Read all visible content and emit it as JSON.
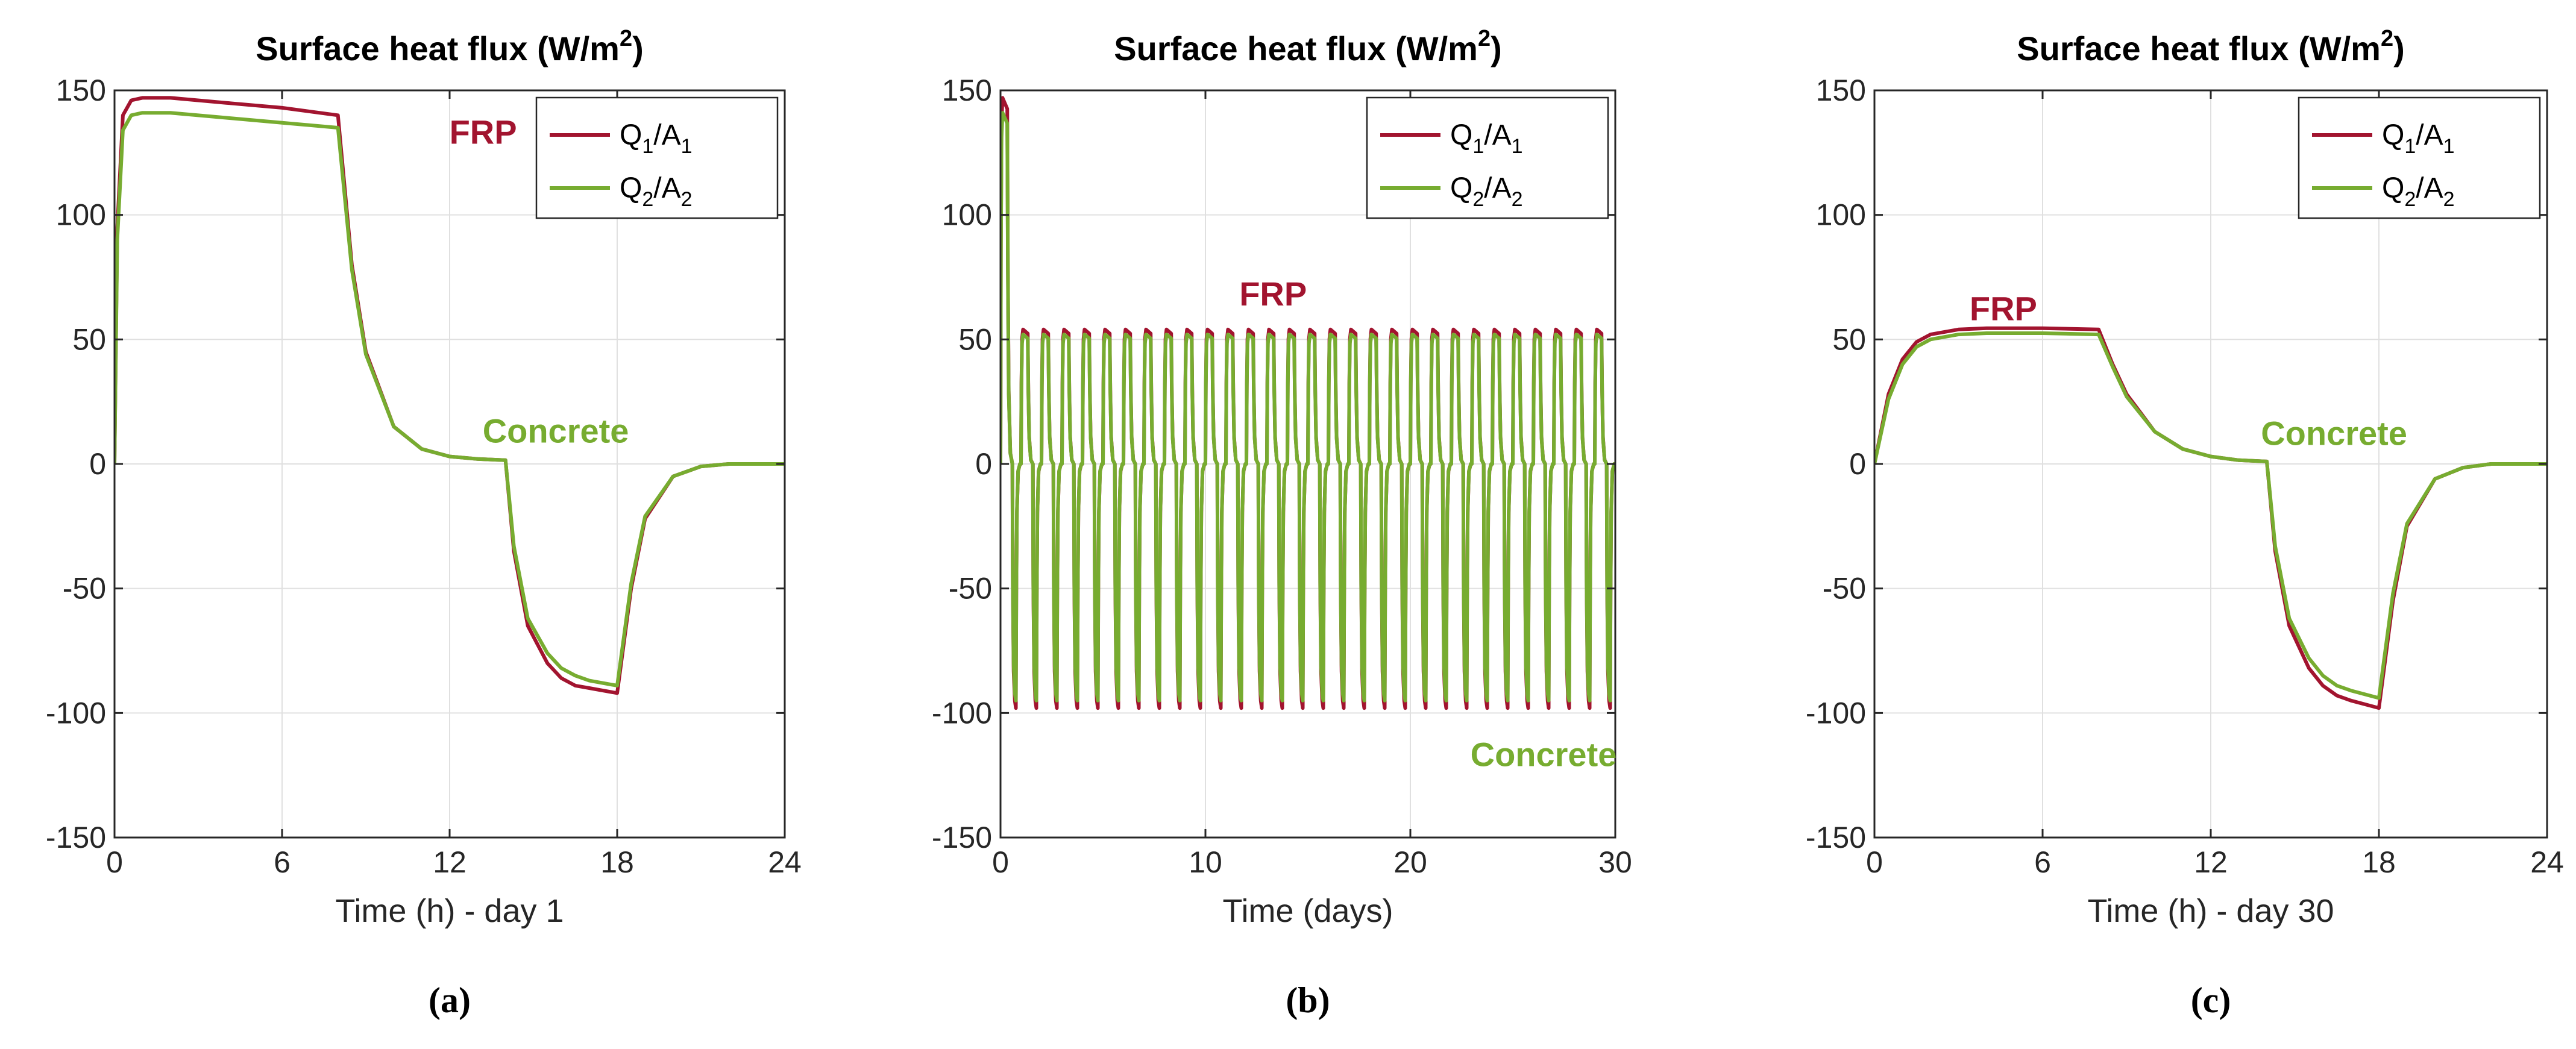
{
  "colors": {
    "q1": "#A2142F",
    "q2": "#77AC30",
    "frp_text": "#A2142F",
    "concrete_text": "#77AC30"
  },
  "chart_data": [
    {
      "panel": "(a)",
      "type": "line",
      "title": "Surface heat flux (W/m2)",
      "title_base": "Surface heat flux (W/m",
      "title_sup": "2",
      "title_end": ")",
      "xlabel": "Time (h) - day 1",
      "ylabel": "",
      "xlim": [
        0,
        24
      ],
      "ylim": [
        -150,
        150
      ],
      "xticks": [
        0,
        6,
        12,
        18,
        24
      ],
      "yticks": [
        -150,
        -100,
        -50,
        0,
        50,
        100,
        150
      ],
      "grid": true,
      "legend_position": "top-right",
      "legend": [
        {
          "base": "Q",
          "sub1": "1",
          "mid": "/A",
          "sub2": "1"
        },
        {
          "base": "Q",
          "sub1": "2",
          "mid": "/A",
          "sub2": "2"
        }
      ],
      "annotations": [
        {
          "text": "FRP",
          "x": 13.2,
          "y": 133,
          "color": "q1"
        },
        {
          "text": "Concrete",
          "x": 15.8,
          "y": 13,
          "color": "q2"
        }
      ],
      "series": [
        {
          "name": "Q1/A1",
          "color": "q1",
          "x": [
            0,
            0.1,
            0.3,
            0.6,
            1,
            2,
            4,
            6,
            8,
            8.5,
            9,
            10,
            11,
            12,
            13,
            14,
            14.3,
            14.8,
            15.5,
            16,
            16.5,
            17,
            18,
            18.5,
            19,
            20,
            21,
            22,
            24
          ],
          "y": [
            0,
            95,
            140,
            146,
            147,
            147,
            145,
            143,
            140,
            80,
            45,
            15,
            6,
            3,
            2,
            1.5,
            -35,
            -65,
            -80,
            -86,
            -89,
            -90,
            -92,
            -50,
            -22,
            -5,
            -1,
            0,
            0
          ]
        },
        {
          "name": "Q2/A2",
          "color": "q2",
          "x": [
            0,
            0.1,
            0.3,
            0.6,
            1,
            2,
            4,
            6,
            8,
            8.5,
            9,
            10,
            11,
            12,
            13,
            14,
            14.3,
            14.8,
            15.5,
            16,
            16.5,
            17,
            18,
            18.5,
            19,
            20,
            21,
            22,
            24
          ],
          "y": [
            0,
            90,
            134,
            140,
            141,
            141,
            139,
            137,
            135,
            78,
            44,
            15,
            6,
            3,
            2,
            1.5,
            -33,
            -62,
            -76,
            -82,
            -85,
            -87,
            -89,
            -48,
            -21,
            -5,
            -1,
            0,
            0
          ]
        }
      ]
    },
    {
      "panel": "(b)",
      "type": "line",
      "title": "Surface heat flux (W/m2)",
      "title_base": "Surface heat flux (W/m",
      "title_sup": "2",
      "title_end": ")",
      "xlabel": "Time (days)",
      "ylabel": "",
      "xlim": [
        0,
        30
      ],
      "ylim": [
        -150,
        150
      ],
      "xticks": [
        0,
        10,
        20,
        30
      ],
      "yticks": [
        -150,
        -100,
        -50,
        0,
        50,
        100,
        150
      ],
      "grid": true,
      "legend_position": "top-right",
      "legend": [
        {
          "base": "Q",
          "sub1": "1",
          "mid": "/A",
          "sub2": "1"
        },
        {
          "base": "Q",
          "sub1": "2",
          "mid": "/A",
          "sub2": "2"
        }
      ],
      "annotations": [
        {
          "text": "FRP",
          "x": 13.3,
          "y": 68,
          "color": "q1"
        },
        {
          "text": "Concrete",
          "x": 26.5,
          "y": -117,
          "color": "q2"
        }
      ],
      "cycle_days": 30,
      "first_day_peak": {
        "q1": 147,
        "q2": 141
      },
      "series": [
        {
          "name": "Q1/A1",
          "color": "q1",
          "peak": 54,
          "trough": -98
        },
        {
          "name": "Q2/A2",
          "color": "q2",
          "peak": 52,
          "trough": -95
        }
      ]
    },
    {
      "panel": "(c)",
      "type": "line",
      "title": "Surface heat flux (W/m2)",
      "title_base": "Surface heat flux (W/m",
      "title_sup": "2",
      "title_end": ")",
      "xlabel": "Time (h) - day 30",
      "ylabel": "",
      "xlim": [
        0,
        24
      ],
      "ylim": [
        -150,
        150
      ],
      "xticks": [
        0,
        6,
        12,
        18,
        24
      ],
      "yticks": [
        -150,
        -100,
        -50,
        0,
        50,
        100,
        150
      ],
      "grid": true,
      "legend_position": "top-right",
      "legend": [
        {
          "base": "Q",
          "sub1": "1",
          "mid": "/A",
          "sub2": "1"
        },
        {
          "base": "Q",
          "sub1": "2",
          "mid": "/A",
          "sub2": "2"
        }
      ],
      "annotations": [
        {
          "text": "FRP",
          "x": 4.6,
          "y": 62,
          "color": "q1"
        },
        {
          "text": "Concrete",
          "x": 16.4,
          "y": 12,
          "color": "q2"
        }
      ],
      "series": [
        {
          "name": "Q1/A1",
          "color": "q1",
          "x": [
            0,
            0.5,
            1,
            1.5,
            2,
            3,
            4,
            6,
            8,
            8.5,
            9,
            10,
            11,
            12,
            13,
            14,
            14.3,
            14.8,
            15.5,
            16,
            16.5,
            17,
            18,
            18.5,
            19,
            20,
            21,
            22,
            24
          ],
          "y": [
            0,
            28,
            42,
            49,
            52,
            54,
            54.5,
            54.5,
            54,
            40,
            28,
            13,
            6,
            3,
            1.5,
            1,
            -35,
            -65,
            -82,
            -89,
            -93,
            -95,
            -98,
            -55,
            -25,
            -6,
            -1.5,
            0,
            0
          ]
        },
        {
          "name": "Q2/A2",
          "color": "q2",
          "x": [
            0,
            0.5,
            1,
            1.5,
            2,
            3,
            4,
            6,
            8,
            8.5,
            9,
            10,
            11,
            12,
            13,
            14,
            14.3,
            14.8,
            15.5,
            16,
            16.5,
            17,
            18,
            18.5,
            19,
            20,
            21,
            22,
            24
          ],
          "y": [
            0,
            26,
            40,
            47,
            50,
            52,
            52.5,
            52.5,
            52,
            39,
            27,
            13,
            6,
            3,
            1.5,
            1,
            -33,
            -62,
            -78,
            -85,
            -89,
            -91,
            -94,
            -52,
            -24,
            -6,
            -1.5,
            0,
            0
          ]
        }
      ]
    }
  ]
}
